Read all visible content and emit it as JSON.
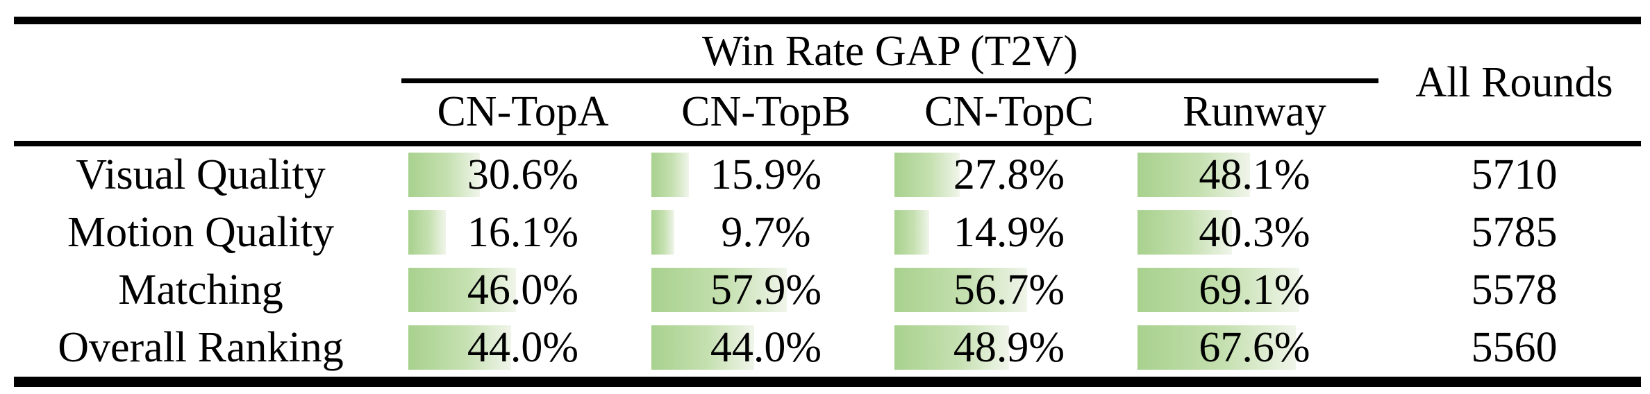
{
  "table": {
    "group_title": "Win Rate GAP (T2V)",
    "all_rounds_label": "All Rounds",
    "columns": [
      "CN-TopA",
      "CN-TopB",
      "CN-TopC",
      "Runway"
    ],
    "rows": [
      {
        "label": "Visual Quality",
        "values": [
          30.6,
          15.9,
          27.8,
          48.1
        ],
        "all_rounds": "5710"
      },
      {
        "label": "Motion Quality",
        "values": [
          16.1,
          9.7,
          14.9,
          40.3
        ],
        "all_rounds": "5785"
      },
      {
        "label": "Matching",
        "values": [
          46.0,
          57.9,
          56.7,
          69.1
        ],
        "all_rounds": "5578"
      },
      {
        "label": "Overall Ranking",
        "values": [
          44.0,
          44.0,
          48.9,
          67.6
        ],
        "all_rounds": "5560"
      }
    ]
  },
  "colors": {
    "bar_gradient_start": "#a8d18e",
    "bar_gradient_mid": "#c5e0b0",
    "bar_gradient_end": "#f0f5ea",
    "rule_color": "#000000",
    "text_color": "#000000",
    "background": "#ffffff"
  },
  "chart_data": {
    "type": "table",
    "title": "Win Rate GAP (T2V)",
    "columns": [
      "CN-TopA",
      "CN-TopB",
      "CN-TopC",
      "Runway",
      "All Rounds"
    ],
    "row_labels": [
      "Visual Quality",
      "Motion Quality",
      "Matching",
      "Overall Ranking"
    ],
    "series": [
      {
        "name": "Visual Quality",
        "win_rate_gap_pct": [
          30.6,
          15.9,
          27.8,
          48.1
        ],
        "all_rounds": 5710
      },
      {
        "name": "Motion Quality",
        "win_rate_gap_pct": [
          16.1,
          9.7,
          14.9,
          40.3
        ],
        "all_rounds": 5785
      },
      {
        "name": "Matching",
        "win_rate_gap_pct": [
          46.0,
          57.9,
          56.7,
          69.1
        ],
        "all_rounds": 5578
      },
      {
        "name": "Overall Ranking",
        "win_rate_gap_pct": [
          44.0,
          44.0,
          48.9,
          67.6
        ],
        "all_rounds": 5560
      }
    ],
    "value_format": "percent_one_decimal",
    "bar_encoding": "in-cell green gradient bar, width proportional to percentage (100% = full cell width)"
  }
}
